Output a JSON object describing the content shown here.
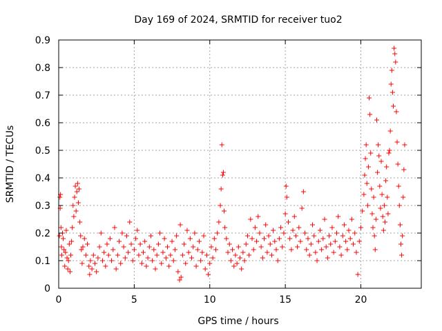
{
  "chart_data": {
    "type": "scatter",
    "title": "Day 169 of 2024, SRMTID for receiver tuo2",
    "xlabel": "GPS time / hours",
    "ylabel": "SRMTID / TECUs",
    "xlim": [
      0,
      24
    ],
    "ylim": [
      0,
      0.9
    ],
    "xticks": [
      0,
      5,
      10,
      15,
      20
    ],
    "yticks": [
      0,
      0.1,
      0.2,
      0.3,
      0.4,
      0.5,
      0.6,
      0.7,
      0.8,
      0.9
    ],
    "xtick_labels": [
      "0",
      "5",
      "10",
      "15",
      "20"
    ],
    "ytick_labels": [
      "0",
      "0.1",
      "0.2",
      "0.3",
      "0.4",
      "0.5",
      "0.6",
      "0.7",
      "0.8",
      "0.9"
    ],
    "grid": true,
    "marker": "+",
    "color": "#ff0000",
    "series": [
      {
        "name": "SRMTID",
        "points": [
          [
            0.05,
            0.19
          ],
          [
            0.08,
            0.33
          ],
          [
            0.1,
            0.29
          ],
          [
            0.12,
            0.34
          ],
          [
            0.15,
            0.22
          ],
          [
            0.18,
            0.15
          ],
          [
            0.2,
            0.12
          ],
          [
            0.25,
            0.2
          ],
          [
            0.3,
            0.18
          ],
          [
            0.35,
            0.14
          ],
          [
            0.4,
            0.08
          ],
          [
            0.45,
            0.13
          ],
          [
            0.5,
            0.21
          ],
          [
            0.55,
            0.11
          ],
          [
            0.6,
            0.07
          ],
          [
            0.65,
            0.1
          ],
          [
            0.7,
            0.16
          ],
          [
            0.75,
            0.06
          ],
          [
            0.8,
            0.12
          ],
          [
            0.85,
            0.17
          ],
          [
            0.9,
            0.22
          ],
          [
            0.95,
            0.3
          ],
          [
            1.0,
            0.26
          ],
          [
            1.05,
            0.33
          ],
          [
            1.1,
            0.37
          ],
          [
            1.15,
            0.28
          ],
          [
            1.2,
            0.35
          ],
          [
            1.25,
            0.38
          ],
          [
            1.3,
            0.31
          ],
          [
            1.35,
            0.36
          ],
          [
            1.4,
            0.24
          ],
          [
            1.45,
            0.19
          ],
          [
            1.5,
            0.14
          ],
          [
            1.55,
            0.09
          ],
          [
            1.6,
            0.15
          ],
          [
            1.7,
            0.18
          ],
          [
            1.8,
            0.12
          ],
          [
            1.9,
            0.16
          ],
          [
            2.0,
            0.08
          ],
          [
            2.05,
            0.05
          ],
          [
            2.1,
            0.1
          ],
          [
            2.2,
            0.07
          ],
          [
            2.3,
            0.12
          ],
          [
            2.4,
            0.09
          ],
          [
            2.5,
            0.06
          ],
          [
            2.6,
            0.11
          ],
          [
            2.7,
            0.15
          ],
          [
            2.8,
            0.2
          ],
          [
            2.9,
            0.1
          ],
          [
            3.0,
            0.13
          ],
          [
            3.1,
            0.08
          ],
          [
            3.2,
            0.16
          ],
          [
            3.3,
            0.12
          ],
          [
            3.4,
            0.18
          ],
          [
            3.5,
            0.1
          ],
          [
            3.6,
            0.14
          ],
          [
            3.7,
            0.22
          ],
          [
            3.8,
            0.07
          ],
          [
            3.9,
            0.12
          ],
          [
            4.0,
            0.17
          ],
          [
            4.1,
            0.09
          ],
          [
            4.2,
            0.2
          ],
          [
            4.3,
            0.15
          ],
          [
            4.4,
            0.11
          ],
          [
            4.5,
            0.19
          ],
          [
            4.6,
            0.13
          ],
          [
            4.7,
            0.24
          ],
          [
            4.8,
            0.16
          ],
          [
            4.9,
            0.1
          ],
          [
            5.0,
            0.14
          ],
          [
            5.1,
            0.18
          ],
          [
            5.2,
            0.21
          ],
          [
            5.3,
            0.12
          ],
          [
            5.4,
            0.16
          ],
          [
            5.5,
            0.09
          ],
          [
            5.6,
            0.13
          ],
          [
            5.7,
            0.17
          ],
          [
            5.8,
            0.08
          ],
          [
            5.9,
            0.11
          ],
          [
            6.0,
            0.15
          ],
          [
            6.1,
            0.19
          ],
          [
            6.2,
            0.1
          ],
          [
            6.3,
            0.14
          ],
          [
            6.4,
            0.07
          ],
          [
            6.5,
            0.12
          ],
          [
            6.6,
            0.16
          ],
          [
            6.7,
            0.2
          ],
          [
            6.8,
            0.09
          ],
          [
            6.9,
            0.13
          ],
          [
            7.0,
            0.18
          ],
          [
            7.1,
            0.11
          ],
          [
            7.2,
            0.15
          ],
          [
            7.3,
            0.08
          ],
          [
            7.4,
            0.12
          ],
          [
            7.5,
            0.17
          ],
          [
            7.6,
            0.1
          ],
          [
            7.7,
            0.14
          ],
          [
            7.8,
            0.19
          ],
          [
            7.9,
            0.06
          ],
          [
            8.0,
            0.03
          ],
          [
            8.05,
            0.23
          ],
          [
            8.1,
            0.04
          ],
          [
            8.2,
            0.12
          ],
          [
            8.3,
            0.16
          ],
          [
            8.4,
            0.09
          ],
          [
            8.5,
            0.21
          ],
          [
            8.6,
            0.13
          ],
          [
            8.7,
            0.18
          ],
          [
            8.8,
            0.11
          ],
          [
            8.9,
            0.15
          ],
          [
            9.0,
            0.2
          ],
          [
            9.1,
            0.08
          ],
          [
            9.2,
            0.14
          ],
          [
            9.3,
            0.17
          ],
          [
            9.4,
            0.1
          ],
          [
            9.5,
            0.13
          ],
          [
            9.6,
            0.19
          ],
          [
            9.7,
            0.07
          ],
          [
            9.8,
            0.12
          ],
          [
            9.9,
            0.05
          ],
          [
            10.0,
            0.09
          ],
          [
            10.1,
            0.15
          ],
          [
            10.2,
            0.11
          ],
          [
            10.3,
            0.18
          ],
          [
            10.4,
            0.14
          ],
          [
            10.5,
            0.2
          ],
          [
            10.6,
            0.24
          ],
          [
            10.7,
            0.3
          ],
          [
            10.75,
            0.36
          ],
          [
            10.8,
            0.52
          ],
          [
            10.85,
            0.41
          ],
          [
            10.9,
            0.42
          ],
          [
            10.95,
            0.28
          ],
          [
            11.0,
            0.22
          ],
          [
            11.1,
            0.18
          ],
          [
            11.2,
            0.13
          ],
          [
            11.3,
            0.16
          ],
          [
            11.4,
            0.1
          ],
          [
            11.5,
            0.14
          ],
          [
            11.6,
            0.08
          ],
          [
            11.7,
            0.12
          ],
          [
            11.8,
            0.09
          ],
          [
            11.9,
            0.15
          ],
          [
            12.0,
            0.11
          ],
          [
            12.1,
            0.07
          ],
          [
            12.2,
            0.13
          ],
          [
            12.3,
            0.1
          ],
          [
            12.4,
            0.16
          ],
          [
            12.5,
            0.19
          ],
          [
            12.6,
            0.12
          ],
          [
            12.7,
            0.25
          ],
          [
            12.8,
            0.18
          ],
          [
            12.9,
            0.14
          ],
          [
            13.0,
            0.22
          ],
          [
            13.1,
            0.17
          ],
          [
            13.2,
            0.26
          ],
          [
            13.3,
            0.2
          ],
          [
            13.4,
            0.15
          ],
          [
            13.5,
            0.11
          ],
          [
            13.6,
            0.18
          ],
          [
            13.7,
            0.23
          ],
          [
            13.8,
            0.13
          ],
          [
            13.9,
            0.19
          ],
          [
            14.0,
            0.16
          ],
          [
            14.1,
            0.12
          ],
          [
            14.2,
            0.21
          ],
          [
            14.3,
            0.17
          ],
          [
            14.4,
            0.14
          ],
          [
            14.5,
            0.1
          ],
          [
            14.6,
            0.18
          ],
          [
            14.7,
            0.22
          ],
          [
            14.8,
            0.15
          ],
          [
            14.9,
            0.2
          ],
          [
            15.0,
            0.27
          ],
          [
            15.05,
            0.37
          ],
          [
            15.1,
            0.33
          ],
          [
            15.2,
            0.24
          ],
          [
            15.3,
            0.18
          ],
          [
            15.4,
            0.14
          ],
          [
            15.5,
            0.21
          ],
          [
            15.6,
            0.26
          ],
          [
            15.7,
            0.19
          ],
          [
            15.8,
            0.15
          ],
          [
            15.9,
            0.22
          ],
          [
            16.0,
            0.17
          ],
          [
            16.1,
            0.29
          ],
          [
            16.2,
            0.35
          ],
          [
            16.3,
            0.2
          ],
          [
            16.4,
            0.14
          ],
          [
            16.5,
            0.18
          ],
          [
            16.6,
            0.12
          ],
          [
            16.7,
            0.16
          ],
          [
            16.8,
            0.23
          ],
          [
            16.9,
            0.19
          ],
          [
            17.0,
            0.13
          ],
          [
            17.1,
            0.1
          ],
          [
            17.2,
            0.17
          ],
          [
            17.3,
            0.21
          ],
          [
            17.4,
            0.14
          ],
          [
            17.5,
            0.18
          ],
          [
            17.6,
            0.25
          ],
          [
            17.7,
            0.15
          ],
          [
            17.8,
            0.11
          ],
          [
            17.9,
            0.19
          ],
          [
            18.0,
            0.16
          ],
          [
            18.1,
            0.22
          ],
          [
            18.2,
            0.13
          ],
          [
            18.3,
            0.17
          ],
          [
            18.4,
            0.2
          ],
          [
            18.5,
            0.26
          ],
          [
            18.6,
            0.15
          ],
          [
            18.7,
            0.12
          ],
          [
            18.8,
            0.19
          ],
          [
            18.9,
            0.23
          ],
          [
            19.0,
            0.17
          ],
          [
            19.1,
            0.14
          ],
          [
            19.2,
            0.21
          ],
          [
            19.3,
            0.18
          ],
          [
            19.4,
            0.25
          ],
          [
            19.5,
            0.16
          ],
          [
            19.6,
            0.2
          ],
          [
            19.7,
            0.13
          ],
          [
            19.8,
            0.05
          ],
          [
            19.9,
            0.17
          ],
          [
            20.0,
            0.22
          ],
          [
            20.1,
            0.28
          ],
          [
            20.2,
            0.34
          ],
          [
            20.25,
            0.41
          ],
          [
            20.3,
            0.47
          ],
          [
            20.35,
            0.52
          ],
          [
            20.4,
            0.38
          ],
          [
            20.45,
            0.3
          ],
          [
            20.5,
            0.44
          ],
          [
            20.55,
            0.69
          ],
          [
            20.6,
            0.63
          ],
          [
            20.65,
            0.49
          ],
          [
            20.7,
            0.36
          ],
          [
            20.75,
            0.27
          ],
          [
            20.8,
            0.22
          ],
          [
            20.85,
            0.33
          ],
          [
            20.9,
            0.19
          ],
          [
            20.95,
            0.14
          ],
          [
            21.0,
            0.25
          ],
          [
            21.05,
            0.61
          ],
          [
            21.1,
            0.42
          ],
          [
            21.15,
            0.52
          ],
          [
            21.2,
            0.48
          ],
          [
            21.25,
            0.37
          ],
          [
            21.3,
            0.29
          ],
          [
            21.35,
            0.46
          ],
          [
            21.4,
            0.34
          ],
          [
            21.45,
            0.26
          ],
          [
            21.5,
            0.21
          ],
          [
            21.55,
            0.3
          ],
          [
            21.6,
            0.24
          ],
          [
            21.65,
            0.39
          ],
          [
            21.7,
            0.44
          ],
          [
            21.75,
            0.33
          ],
          [
            21.8,
            0.27
          ],
          [
            21.85,
            0.49
          ],
          [
            21.9,
            0.5
          ],
          [
            21.95,
            0.57
          ],
          [
            22.0,
            0.74
          ],
          [
            22.05,
            0.79
          ],
          [
            22.1,
            0.71
          ],
          [
            22.15,
            0.66
          ],
          [
            22.2,
            0.87
          ],
          [
            22.25,
            0.85
          ],
          [
            22.3,
            0.82
          ],
          [
            22.35,
            0.64
          ],
          [
            22.4,
            0.53
          ],
          [
            22.45,
            0.45
          ],
          [
            22.5,
            0.37
          ],
          [
            22.55,
            0.3
          ],
          [
            22.6,
            0.23
          ],
          [
            22.65,
            0.16
          ],
          [
            22.7,
            0.12
          ],
          [
            22.75,
            0.19
          ],
          [
            22.8,
            0.33
          ],
          [
            22.85,
            0.43
          ],
          [
            22.9,
            0.52
          ]
        ]
      }
    ]
  }
}
